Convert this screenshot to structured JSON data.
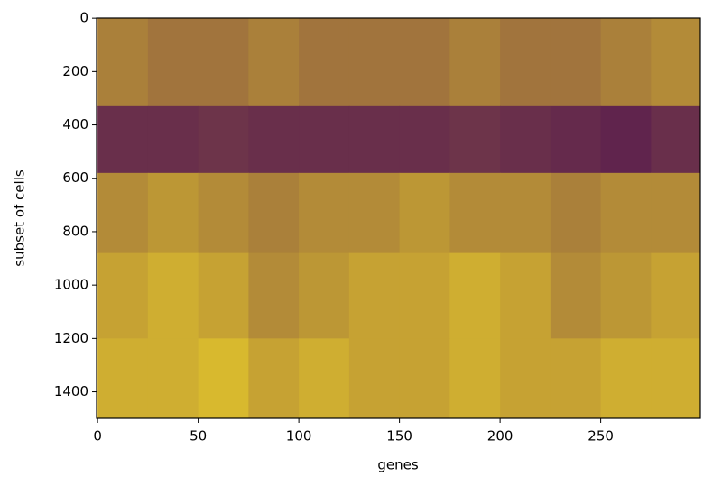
{
  "chart_data": {
    "type": "heatmap",
    "xlabel": "genes",
    "ylabel": "subset of cells",
    "xbins": [
      0,
      25,
      50,
      75,
      100,
      125,
      150,
      175,
      200,
      225,
      250,
      275,
      300
    ],
    "ybins": [
      0,
      330,
      580,
      880,
      1200,
      1500
    ],
    "values": [
      [
        0.55,
        0.5,
        0.5,
        0.55,
        0.5,
        0.5,
        0.5,
        0.55,
        0.5,
        0.5,
        0.55,
        0.6
      ],
      [
        0.2,
        0.2,
        0.22,
        0.2,
        0.2,
        0.2,
        0.2,
        0.22,
        0.2,
        0.18,
        0.15,
        0.2
      ],
      [
        0.6,
        0.65,
        0.6,
        0.55,
        0.6,
        0.6,
        0.65,
        0.6,
        0.6,
        0.55,
        0.6,
        0.6
      ],
      [
        0.7,
        0.75,
        0.7,
        0.6,
        0.65,
        0.7,
        0.7,
        0.75,
        0.7,
        0.6,
        0.65,
        0.7
      ],
      [
        0.75,
        0.75,
        0.8,
        0.7,
        0.75,
        0.7,
        0.7,
        0.75,
        0.7,
        0.7,
        0.75,
        0.75
      ]
    ],
    "colormap": [
      "#440154",
      "#fde725"
    ],
    "xlim": [
      -0.5,
      299.5
    ],
    "ylim": [
      1499.5,
      -0.5
    ],
    "xticks": [
      0,
      50,
      100,
      150,
      200,
      250
    ],
    "yticks": [
      0,
      200,
      400,
      600,
      800,
      1000,
      1200,
      1400
    ]
  }
}
